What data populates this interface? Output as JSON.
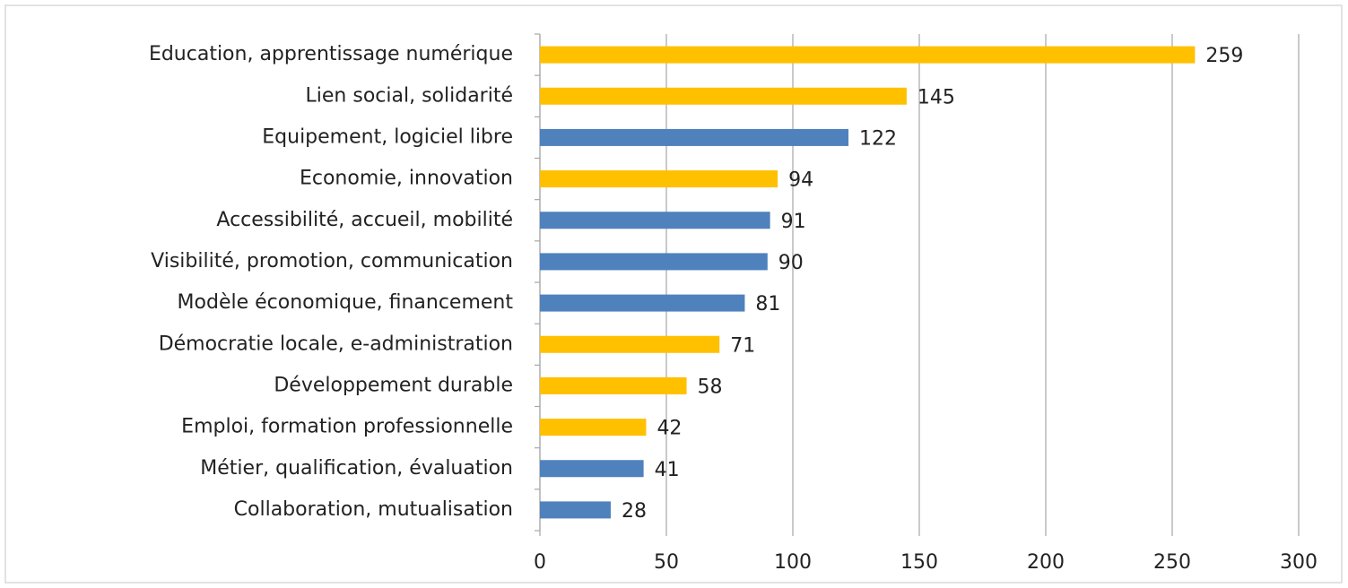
{
  "chart_data": {
    "type": "hbar",
    "categories": [
      "Education, apprentissage numérique",
      "Lien social, solidarité",
      "Equipement, logiciel libre",
      "Economie, innovation",
      "Accessibilité, accueil, mobilité",
      "Visibilité, promotion, communication",
      "Modèle économique, financement",
      "Démocratie locale, e-administration",
      "Développement durable",
      "Emploi, formation professionnelle",
      "Métier, qualification, évaluation",
      "Collaboration, mutualisation"
    ],
    "values": [
      259,
      145,
      122,
      94,
      91,
      90,
      81,
      71,
      58,
      42,
      41,
      28
    ],
    "colors": [
      "#ffc000",
      "#ffc000",
      "#4f81bd",
      "#ffc000",
      "#4f81bd",
      "#4f81bd",
      "#4f81bd",
      "#ffc000",
      "#ffc000",
      "#ffc000",
      "#4f81bd",
      "#4f81bd"
    ],
    "xlim": [
      0,
      300
    ],
    "xticks": [
      0,
      50,
      100,
      150,
      200,
      250,
      300
    ],
    "grid": true
  }
}
